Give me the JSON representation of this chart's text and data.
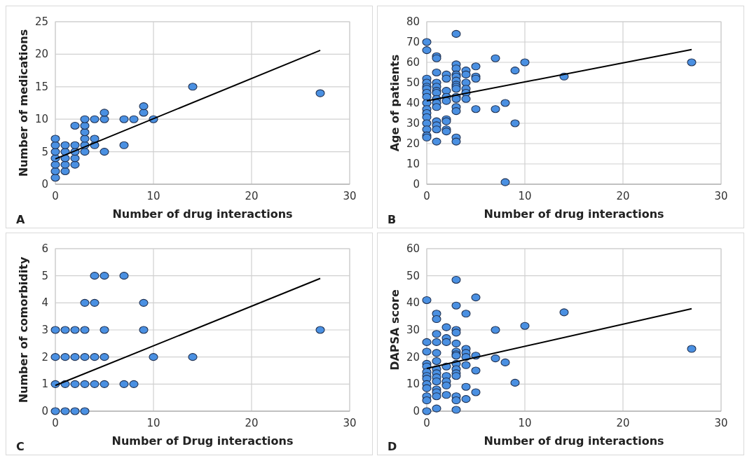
{
  "chart_data": [
    {
      "type": "scatter",
      "xlabel": "Number of drug interactions",
      "ylabel": "Number of medications",
      "xlim": [
        0,
        30
      ],
      "xticks": [
        0,
        10,
        20,
        30
      ],
      "ylim": [
        0,
        25
      ],
      "yticks": [
        0,
        5,
        10,
        15,
        20,
        25
      ],
      "grid": true,
      "annotations": [
        "A"
      ],
      "series": [
        {
          "marker": "circle",
          "color": "#4a90e2",
          "x": [
            0,
            0,
            0,
            0,
            0,
            0,
            0,
            1,
            1,
            1,
            1,
            1,
            2,
            2,
            2,
            2,
            2,
            3,
            3,
            3,
            3,
            3,
            3,
            4,
            4,
            4,
            5,
            5,
            5,
            7,
            7,
            8,
            9,
            9,
            10,
            14,
            27
          ],
          "values": [
            1,
            2,
            3,
            4,
            5,
            6,
            7,
            2,
            3,
            4,
            5,
            6,
            3,
            4,
            5,
            6,
            9,
            5,
            6,
            7,
            8,
            9,
            10,
            6,
            7,
            10,
            5,
            10,
            11,
            6,
            10,
            10,
            11,
            12,
            10,
            15,
            14
          ]
        },
        {
          "type": "line",
          "color": "#000000",
          "x": [
            0,
            27
          ],
          "values": [
            3.9,
            20.6
          ]
        }
      ]
    },
    {
      "type": "scatter",
      "xlabel": "Number of drug interactions",
      "ylabel": "Age of patients",
      "xlim": [
        0,
        30
      ],
      "xticks": [
        0,
        10,
        20,
        30
      ],
      "ylim": [
        0,
        80
      ],
      "yticks": [
        0,
        10,
        20,
        30,
        40,
        50,
        60,
        70,
        80
      ],
      "grid": true,
      "annotations": [
        "B"
      ],
      "series": [
        {
          "marker": "circle",
          "color": "#4a90e2",
          "x": [
            0,
            0,
            0,
            0,
            0,
            0,
            0,
            0,
            0,
            0,
            0,
            0,
            0,
            0,
            0,
            0,
            1,
            1,
            1,
            1,
            1,
            1,
            1,
            1,
            1,
            1,
            1,
            1,
            1,
            1,
            2,
            2,
            2,
            2,
            2,
            2,
            2,
            2,
            2,
            3,
            3,
            3,
            3,
            3,
            3,
            3,
            3,
            3,
            3,
            3,
            3,
            3,
            3,
            3,
            4,
            4,
            4,
            4,
            4,
            4,
            5,
            5,
            5,
            5,
            7,
            7,
            8,
            8,
            9,
            9,
            10,
            14,
            27
          ],
          "values": [
            70,
            66,
            52,
            50,
            48,
            47,
            45,
            43,
            40,
            37,
            35,
            33,
            30,
            27,
            24,
            23,
            63,
            62,
            55,
            50,
            48,
            46,
            45,
            42,
            40,
            38,
            31,
            29,
            27,
            21,
            54,
            52,
            46,
            43,
            41,
            32,
            31,
            27,
            26,
            74,
            59,
            57,
            54,
            53,
            51,
            49,
            48,
            47,
            43,
            42,
            38,
            36,
            23,
            21,
            56,
            54,
            50,
            47,
            45,
            42,
            58,
            53,
            52,
            37,
            62,
            37,
            40,
            1,
            56,
            30,
            60,
            53,
            60
          ]
        },
        {
          "type": "line",
          "color": "#000000",
          "x": [
            0,
            27
          ],
          "values": [
            41,
            66.3
          ]
        }
      ]
    },
    {
      "type": "scatter",
      "xlabel": "Number of Drug interactions",
      "ylabel": "Number of comorbidity",
      "xlim": [
        0,
        30
      ],
      "xticks": [
        0,
        10,
        20,
        30
      ],
      "ylim": [
        0,
        6
      ],
      "yticks": [
        0,
        1,
        2,
        3,
        4,
        5,
        6
      ],
      "grid": true,
      "annotations": [
        "C"
      ],
      "series": [
        {
          "marker": "circle",
          "color": "#4a90e2",
          "x": [
            4,
            5,
            7,
            3,
            4,
            9,
            0,
            1,
            2,
            3,
            5,
            9,
            27,
            0,
            1,
            2,
            3,
            4,
            5,
            10,
            14,
            0,
            1,
            2,
            3,
            4,
            5,
            7,
            8,
            0,
            1,
            2,
            3
          ],
          "values": [
            5,
            5,
            5,
            4,
            4,
            4,
            3,
            3,
            3,
            3,
            3,
            3,
            3,
            2,
            2,
            2,
            2,
            2,
            2,
            2,
            2,
            1,
            1,
            1,
            1,
            1,
            1,
            1,
            1,
            0,
            0,
            0,
            0
          ]
        },
        {
          "type": "line",
          "color": "#000000",
          "x": [
            0,
            27
          ],
          "values": [
            0.95,
            4.9
          ]
        }
      ]
    },
    {
      "type": "scatter",
      "xlabel": "Number of drug interactions",
      "ylabel": "DAPSA score",
      "xlim": [
        0,
        30
      ],
      "xticks": [
        0,
        10,
        20,
        30
      ],
      "ylim": [
        0,
        60
      ],
      "yticks": [
        0,
        10,
        20,
        30,
        40,
        50,
        60
      ],
      "grid": true,
      "annotations": [
        "D"
      ],
      "series": [
        {
          "marker": "circle",
          "color": "#4a90e2",
          "x": [
            0,
            0,
            0,
            0,
            0,
            0,
            0,
            0,
            0,
            0,
            0,
            0,
            0,
            1,
            1,
            1,
            1,
            1,
            1,
            1,
            1,
            1,
            1,
            1,
            1,
            1,
            1,
            2,
            2,
            2,
            2,
            2,
            2,
            2,
            2,
            3,
            3,
            3,
            3,
            3,
            3,
            3,
            3,
            3,
            3,
            3,
            3,
            3,
            3,
            3,
            4,
            4,
            4,
            4,
            4,
            4,
            4,
            5,
            5,
            5,
            5,
            7,
            7,
            8,
            9,
            10,
            14,
            27
          ],
          "values": [
            41,
            25.5,
            22,
            17.5,
            16.5,
            14.5,
            13,
            12,
            10,
            8.5,
            5.5,
            4,
            0,
            36,
            34,
            28.5,
            25.5,
            21.5,
            18.5,
            15.5,
            14,
            12.5,
            11,
            8,
            7,
            5.5,
            1,
            31,
            27,
            25.5,
            16.5,
            13,
            11,
            9.5,
            6,
            48.5,
            39,
            30,
            29,
            25,
            22,
            21,
            20.5,
            17.5,
            15.5,
            14,
            13,
            5.5,
            4,
            0.5,
            36,
            23,
            21.5,
            20,
            17,
            9,
            4.5,
            42,
            20.5,
            15,
            7,
            30,
            19.5,
            18,
            10.5,
            31.5,
            36.5,
            23
          ]
        },
        {
          "type": "line",
          "color": "#000000",
          "x": [
            0,
            27
          ],
          "values": [
            15.8,
            37.8
          ]
        }
      ]
    }
  ]
}
